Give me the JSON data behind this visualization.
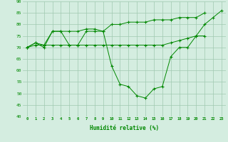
{
  "x": [
    0,
    1,
    2,
    3,
    4,
    5,
    6,
    7,
    8,
    9,
    10,
    11,
    12,
    13,
    14,
    15,
    16,
    17,
    18,
    19,
    20,
    21,
    22,
    23
  ],
  "line1": [
    70,
    72,
    71,
    77,
    77,
    77,
    77,
    78,
    78,
    77,
    80,
    80,
    81,
    81,
    81,
    82,
    82,
    82,
    83,
    83,
    83,
    85,
    null,
    null
  ],
  "line2": [
    70,
    71,
    71,
    71,
    71,
    71,
    71,
    71,
    71,
    71,
    71,
    71,
    71,
    71,
    71,
    71,
    71,
    72,
    73,
    74,
    75,
    75,
    null,
    null
  ],
  "line3": [
    70,
    72,
    70,
    77,
    77,
    71,
    71,
    77,
    77,
    77,
    62,
    54,
    53,
    49,
    48,
    52,
    53,
    66,
    70,
    70,
    75,
    80,
    83,
    86
  ],
  "xlabel": "Humidité relative (%)",
  "ylim": [
    40,
    90
  ],
  "xlim": [
    -0.5,
    23.5
  ],
  "yticks": [
    40,
    45,
    50,
    55,
    60,
    65,
    70,
    75,
    80,
    85,
    90
  ],
  "xticks": [
    0,
    1,
    2,
    3,
    4,
    5,
    6,
    7,
    8,
    9,
    10,
    11,
    12,
    13,
    14,
    15,
    16,
    17,
    18,
    19,
    20,
    21,
    22,
    23
  ],
  "bg_color": "#d4ede0",
  "grid_color": "#a0c8b0",
  "line_color": "#008800",
  "marker": "+"
}
